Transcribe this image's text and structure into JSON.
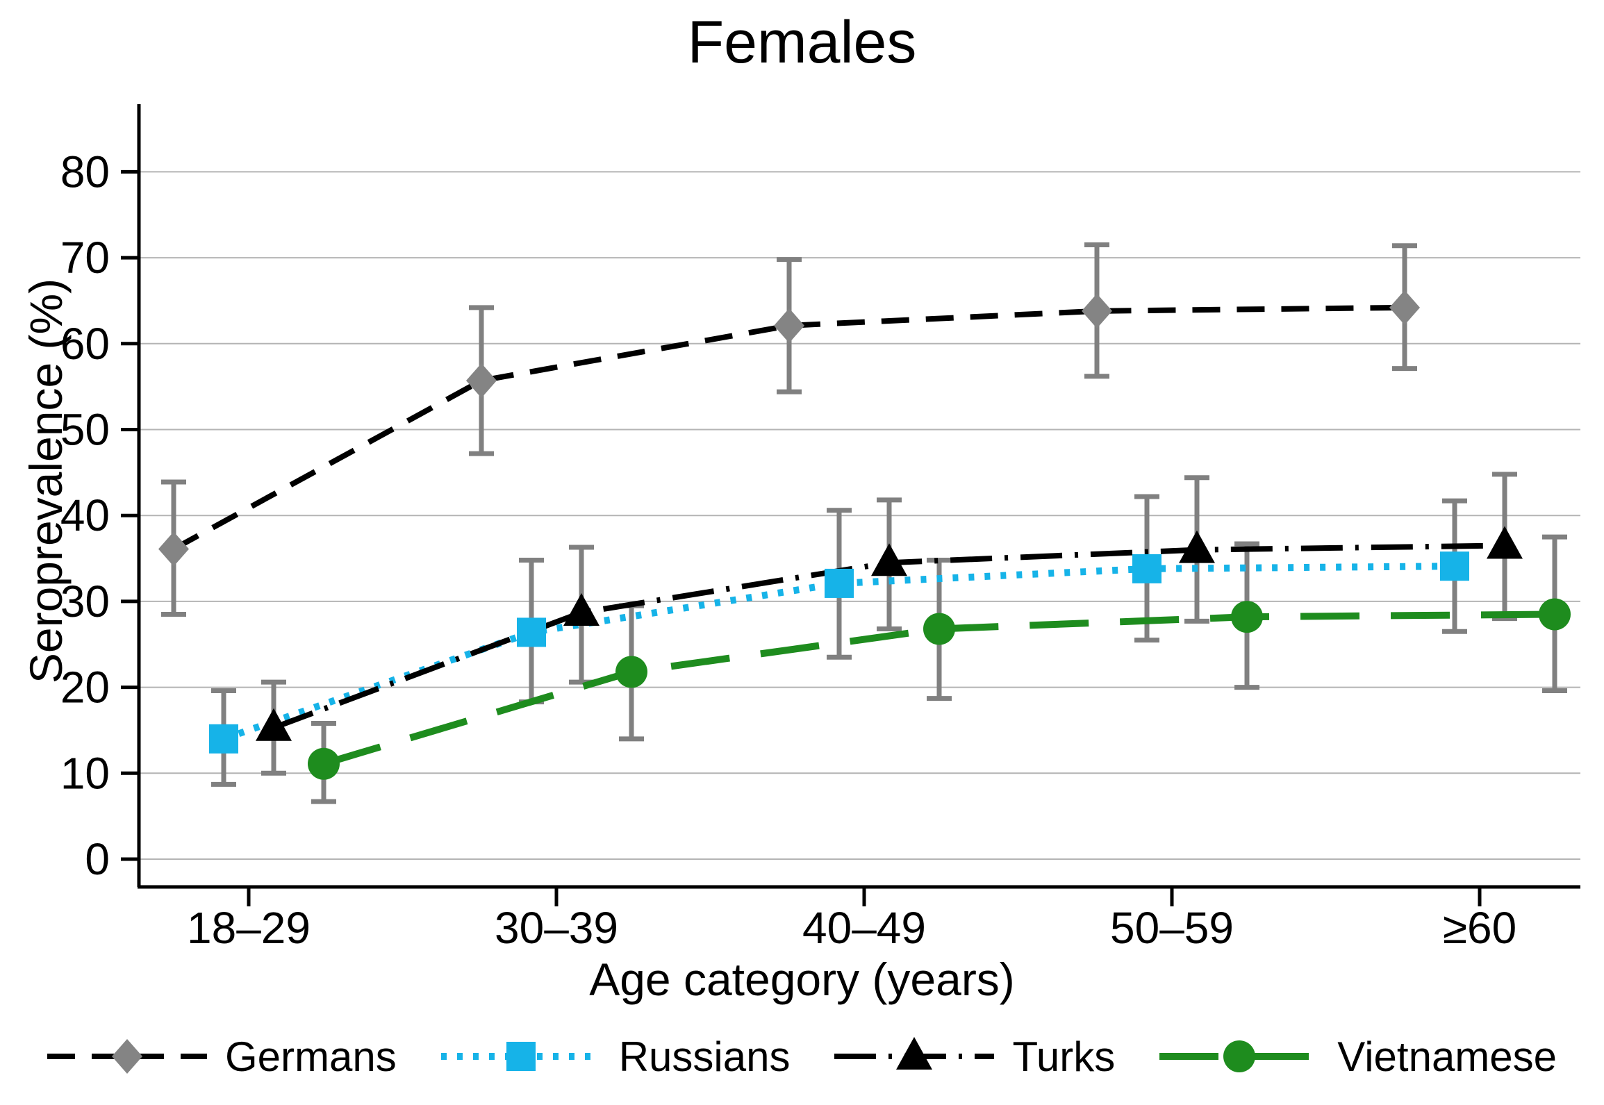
{
  "title": "Females",
  "chart_data": {
    "type": "line",
    "title": "Females",
    "xlabel": "Age category (years)",
    "ylabel": "Seroprevalence (%)",
    "categories": [
      "18–29",
      "30–39",
      "40–49",
      "50–59",
      "≥60"
    ],
    "y_ticks": [
      0,
      10,
      20,
      30,
      40,
      50,
      60,
      70,
      80
    ],
    "ylim": [
      0,
      85
    ],
    "grid": "horizontal",
    "legend_position": "bottom",
    "error_bar_color": "#808080",
    "gridline_color": "#b4b4b4",
    "series": [
      {
        "name": "Germans",
        "marker": "diamond",
        "marker_color": "#848484",
        "line_color": "#000000",
        "line_style": "dashed",
        "values": [
          36.1,
          55.7,
          62.1,
          63.8,
          64.2
        ],
        "ci_low": [
          28.5,
          47.2,
          54.4,
          56.2,
          57.1
        ],
        "ci_high": [
          43.9,
          64.2,
          69.8,
          71.5,
          71.4
        ]
      },
      {
        "name": "Russians",
        "marker": "square",
        "marker_color": "#16b3e8",
        "line_color": "#16b3e8",
        "line_style": "dotted",
        "values": [
          14.0,
          26.4,
          32.1,
          33.8,
          34.1
        ],
        "ci_low": [
          8.7,
          18.3,
          23.5,
          25.5,
          26.5
        ],
        "ci_high": [
          19.6,
          34.8,
          40.6,
          42.2,
          41.7
        ]
      },
      {
        "name": "Turks",
        "marker": "triangle",
        "marker_color": "#000000",
        "line_color": "#000000",
        "line_style": "dash-dot",
        "values": [
          15.3,
          28.7,
          34.5,
          36.0,
          36.5
        ],
        "ci_low": [
          10.0,
          20.6,
          26.8,
          27.7,
          28.0
        ],
        "ci_high": [
          20.6,
          36.3,
          41.8,
          44.4,
          44.8
        ]
      },
      {
        "name": "Vietnamese",
        "marker": "circle",
        "marker_color": "#1e8c1e",
        "line_color": "#1e8c1e",
        "line_style": "long-dash",
        "values": [
          11.1,
          21.8,
          26.8,
          28.2,
          28.5
        ],
        "ci_low": [
          6.7,
          14.0,
          18.7,
          20.0,
          19.6
        ],
        "ci_high": [
          15.8,
          29.5,
          34.8,
          36.7,
          37.5
        ]
      }
    ]
  }
}
